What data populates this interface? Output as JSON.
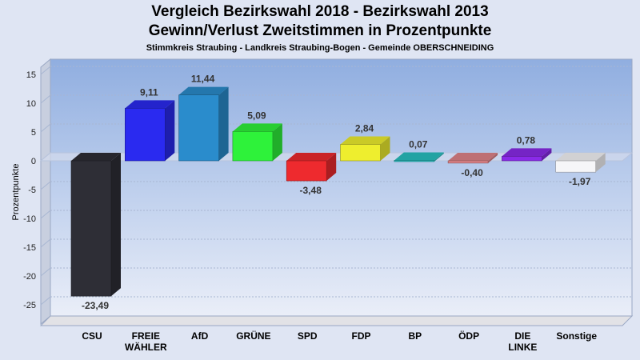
{
  "title": "Vergleich Bezirkswahl 2018 - Bezirkswahl 2013",
  "subtitle": "Gewinn/Verlust Zweitstimmen in Prozentpunkte",
  "subsubtitle": "Stimmkreis Straubing - Landkreis Straubing-Bogen - Gemeinde OBERSCHNEIDING",
  "chart_data": {
    "type": "bar",
    "categories": [
      "CSU",
      "FREIE WÄHLER",
      "AfD",
      "GRÜNE",
      "SPD",
      "FDP",
      "BP",
      "ÖDP",
      "DIE LINKE",
      "Sonstige"
    ],
    "category_lines": [
      [
        "CSU"
      ],
      [
        "FREIE",
        "WÄHLER"
      ],
      [
        "AfD"
      ],
      [
        "GRÜNE"
      ],
      [
        "SPD"
      ],
      [
        "FDP"
      ],
      [
        "BP"
      ],
      [
        "ÖDP"
      ],
      [
        "DIE",
        "LINKE"
      ],
      [
        "Sonstige"
      ]
    ],
    "values": [
      -23.49,
      9.11,
      11.44,
      5.09,
      -3.48,
      2.84,
      0.07,
      -0.4,
      0.78,
      -1.97
    ],
    "value_labels": [
      "-23,49",
      "9,11",
      "11,44",
      "5,09",
      "-3,48",
      "2,84",
      "0,07",
      "-0,40",
      "0,78",
      "-1,97"
    ],
    "colors": [
      "#2e2e36",
      "#2a2af0",
      "#2a8ccc",
      "#2ef23a",
      "#ee2a2e",
      "#eeee2e",
      "#28c0c0",
      "#e08488",
      "#8a2ae8",
      "#f6f6f8"
    ],
    "ylabel": "Prozentpunkte",
    "ylim": [
      -28,
      17
    ],
    "yticks": [
      15,
      10,
      5,
      0,
      -5,
      -10,
      -15,
      -20,
      -25
    ],
    "grid": true
  }
}
